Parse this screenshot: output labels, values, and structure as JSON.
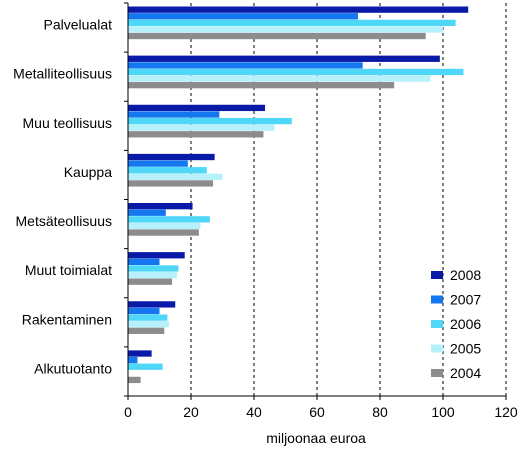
{
  "chart_data": {
    "type": "bar",
    "orientation": "horizontal",
    "categories": [
      "Palvelualat",
      "Metalliteollisuus",
      "Muu teollisuus",
      "Kauppa",
      "Metsäteollisuus",
      "Muut toimialat",
      "Rakentaminen",
      "Alkutuotanto"
    ],
    "series": [
      {
        "name": "2008",
        "color": "#0a1aa8",
        "values": [
          108,
          99,
          43.5,
          27.5,
          20.5,
          18,
          15,
          7.5
        ]
      },
      {
        "name": "2007",
        "color": "#1577f0",
        "values": [
          73,
          74.5,
          29,
          19,
          12,
          10,
          10,
          3
        ]
      },
      {
        "name": "2006",
        "color": "#4fd7f8",
        "values": [
          104,
          106.5,
          52,
          25,
          26,
          16,
          12.5,
          11
        ]
      },
      {
        "name": "2005",
        "color": "#b6f0fb",
        "values": [
          100,
          96,
          46.5,
          30,
          23,
          15.5,
          13,
          0
        ]
      },
      {
        "name": "2004",
        "color": "#8c8c8c",
        "values": [
          94.5,
          84.5,
          43,
          27,
          22.5,
          14,
          11.5,
          4
        ]
      }
    ],
    "xlabel": "miljoonaa euroa",
    "xlim": [
      0,
      120
    ],
    "xticks": [
      0,
      20,
      40,
      60,
      80,
      100,
      120
    ],
    "grid": "vertical dashed",
    "legend_position": "bottom-right"
  }
}
